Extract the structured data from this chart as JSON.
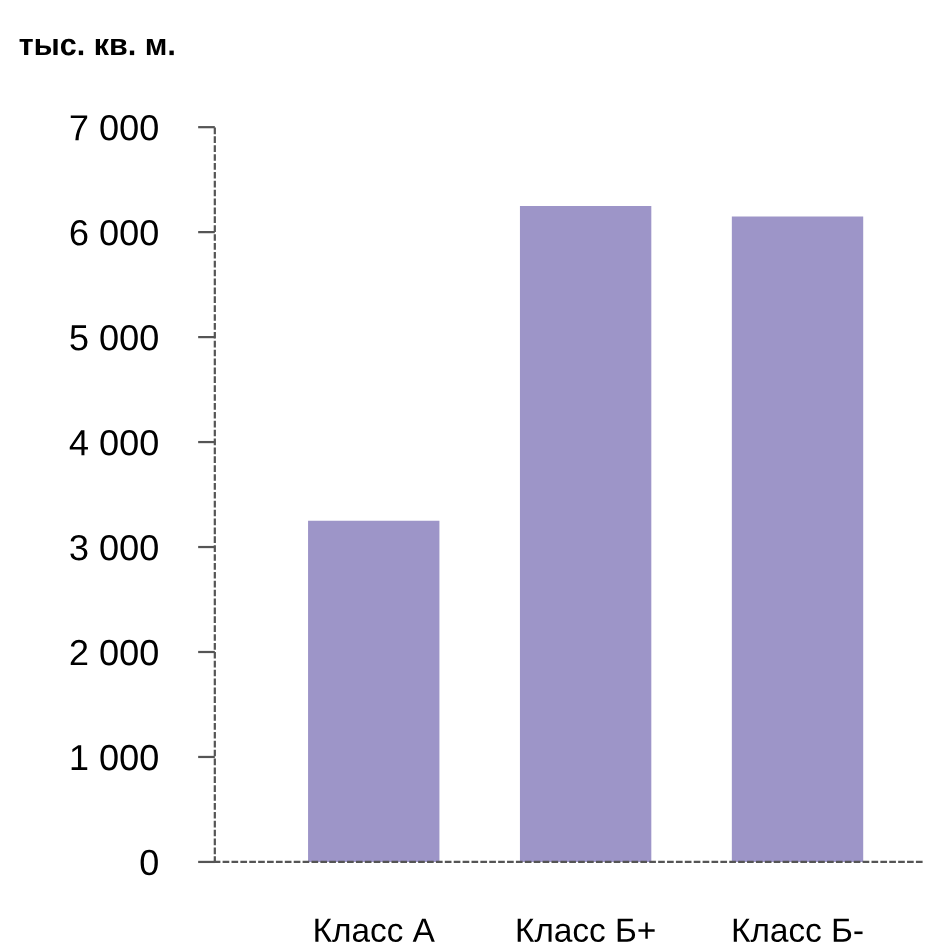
{
  "chart_data": {
    "type": "bar",
    "title": "тыс. кв. м.",
    "categories": [
      "Класс А",
      "Класс Б+",
      "Класс Б-"
    ],
    "values": [
      3250,
      6250,
      6150
    ],
    "color": "#9d95c8",
    "ylim": [
      0,
      7000
    ],
    "yticks": [
      {
        "value": 0,
        "label": "0"
      },
      {
        "value": 1000,
        "label": "1 000"
      },
      {
        "value": 2000,
        "label": "2 000"
      },
      {
        "value": 3000,
        "label": "3 000"
      },
      {
        "value": 4000,
        "label": "4 000"
      },
      {
        "value": 5000,
        "label": "5 000"
      },
      {
        "value": 6000,
        "label": "6 000"
      },
      {
        "value": 7000,
        "label": "7 000"
      }
    ],
    "grid": false
  }
}
